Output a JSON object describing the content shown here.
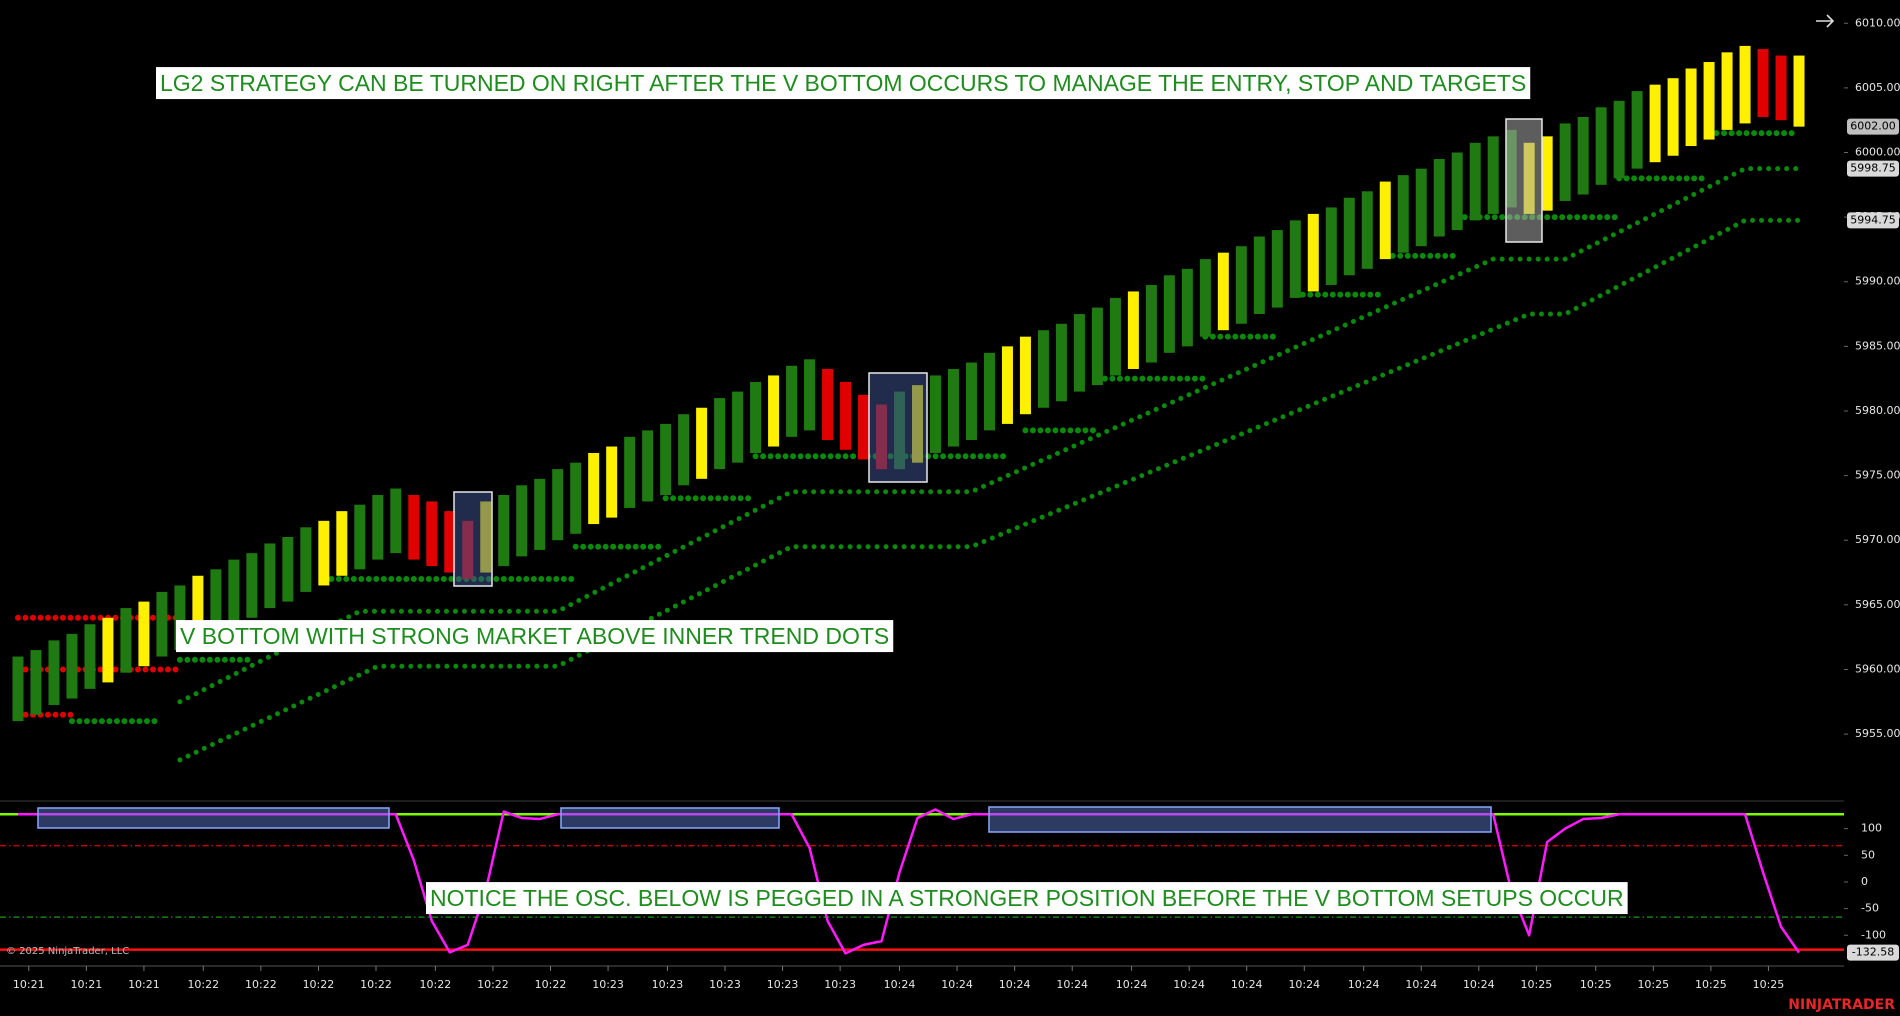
{
  "chart_data": [
    {
      "type": "range-bar",
      "high": [
        5961,
        5961.5,
        5962.25,
        5962.75,
        5963.5,
        5964,
        5964.75,
        5965.25,
        5966,
        5966.5,
        5967.25,
        5967.75,
        5968.5,
        5969,
        5969.75,
        5970.25,
        5971,
        5971.5,
        5972.25,
        5972.75,
        5973.5,
        5974,
        5973.5,
        5973,
        5972.25,
        5971.5,
        5973,
        5973.5,
        5974.25,
        5974.75,
        5975.5,
        5976,
        5976.75,
        5977.25,
        5978,
        5978.5,
        5979,
        5979.75,
        5980.25,
        5981,
        5981.5,
        5982.25,
        5982.75,
        5983.5,
        5984,
        5983.25,
        5982.25,
        5981.25,
        5980.5,
        5981.5,
        5982,
        5982.75,
        5983.25,
        5983.75,
        5984.5,
        5985,
        5985.75,
        5986.25,
        5986.75,
        5987.5,
        5988,
        5988.75,
        5989.25,
        5989.75,
        5990.5,
        5991,
        5991.75,
        5992.25,
        5992.75,
        5993.5,
        5994,
        5994.75,
        5995.25,
        5995.75,
        5996.5,
        5997,
        5997.75,
        5998.25,
        5998.75,
        5999.5,
        6000,
        6000.75,
        6001.25,
        6001.75,
        6000.75,
        6001.25,
        6002.25,
        6002.75,
        6003.5,
        6004,
        6004.75,
        6005.25,
        6005.75,
        6006.5,
        6007,
        6007.75,
        6008.25,
        6008,
        6007.5,
        6007.5
      ],
      "low": [
        5956,
        5956.5,
        5957.25,
        5957.75,
        5958.5,
        5959,
        5959.75,
        5960.25,
        5961,
        5961.5,
        5962.25,
        5962.75,
        5963.5,
        5964,
        5964.75,
        5965.25,
        5966,
        5966.5,
        5967.25,
        5967.75,
        5968.5,
        5969,
        5968.5,
        5968,
        5967.5,
        5967,
        5967.5,
        5968,
        5968.75,
        5969.25,
        5970,
        5970.5,
        5971.25,
        5971.75,
        5972.5,
        5973,
        5973.5,
        5974.25,
        5974.75,
        5975.5,
        5976,
        5976.75,
        5977.25,
        5978,
        5978.5,
        5977.75,
        5977,
        5976.25,
        5975.5,
        5975.5,
        5976,
        5976.75,
        5977.25,
        5977.75,
        5978.5,
        5979,
        5979.75,
        5980.25,
        5980.75,
        5981.5,
        5982,
        5982.75,
        5983.25,
        5983.75,
        5984.5,
        5985,
        5985.75,
        5986.25,
        5986.75,
        5987.5,
        5988,
        5988.75,
        5989.25,
        5989.75,
        5990.5,
        5991,
        5991.75,
        5992.25,
        5992.75,
        5993.5,
        5994,
        5994.75,
        5995.25,
        5995.75,
        5995.25,
        5995.5,
        5996.25,
        5996.75,
        5997.5,
        5998,
        5998.75,
        5999.25,
        5999.75,
        6000.5,
        6001,
        6001.75,
        6002.25,
        6002.75,
        6002.5,
        6002
      ],
      "colors": [
        "#1f7a12",
        "#1f7a12",
        "#1f7a12",
        "#1f7a12",
        "#1f7a12",
        "#ffef00",
        "#1f7a12",
        "#ffef00",
        "#1f7a12",
        "#1f7a12",
        "#ffef00",
        "#1f7a12",
        "#1f7a12",
        "#1f7a12",
        "#1f7a12",
        "#1f7a12",
        "#1f7a12",
        "#ffef00",
        "#ffef00",
        "#1f7a12",
        "#1f7a12",
        "#1f7a12",
        "#e00000",
        "#e00000",
        "#e00000",
        "#e00000",
        "#ffef00",
        "#1f7a12",
        "#1f7a12",
        "#1f7a12",
        "#1f7a12",
        "#1f7a12",
        "#ffef00",
        "#ffef00",
        "#1f7a12",
        "#1f7a12",
        "#1f7a12",
        "#1f7a12",
        "#ffef00",
        "#1f7a12",
        "#1f7a12",
        "#1f7a12",
        "#ffef00",
        "#1f7a12",
        "#1f7a12",
        "#e00000",
        "#e00000",
        "#e00000",
        "#e00000",
        "#1f7a12",
        "#ffef00",
        "#1f7a12",
        "#1f7a12",
        "#1f7a12",
        "#1f7a12",
        "#ffef00",
        "#ffef00",
        "#1f7a12",
        "#1f7a12",
        "#1f7a12",
        "#1f7a12",
        "#1f7a12",
        "#ffef00",
        "#1f7a12",
        "#1f7a12",
        "#1f7a12",
        "#1f7a12",
        "#ffef00",
        "#1f7a12",
        "#1f7a12",
        "#1f7a12",
        "#1f7a12",
        "#ffef00",
        "#1f7a12",
        "#1f7a12",
        "#1f7a12",
        "#ffef00",
        "#1f7a12",
        "#1f7a12",
        "#1f7a12",
        "#1f7a12",
        "#1f7a12",
        "#1f7a12",
        "#1f7a12",
        "#ffef00",
        "#ffef00",
        "#1f7a12",
        "#1f7a12",
        "#1f7a12",
        "#1f7a12",
        "#1f7a12",
        "#ffef00",
        "#ffef00",
        "#ffef00",
        "#ffef00",
        "#ffef00",
        "#ffef00",
        "#e00000",
        "#e00000",
        "#ffef00"
      ],
      "xlim": [
        -1,
        101.5
      ],
      "ylim": [
        5949.9,
        6011.8
      ],
      "yticks": [
        {
          "value": 6010,
          "label": "6010.00"
        },
        {
          "value": 6005,
          "label": "6005.00"
        },
        {
          "value": 6000,
          "label": "6000.00"
        },
        {
          "value": 5995,
          "label": "5995.00"
        },
        {
          "value": 5990,
          "label": "5990.00"
        },
        {
          "value": 5985,
          "label": "5985.00"
        },
        {
          "value": 5980,
          "label": "5980.00"
        },
        {
          "value": 5975,
          "label": "5975.00"
        },
        {
          "value": 5970,
          "label": "5970.00"
        },
        {
          "value": 5965,
          "label": "5965.00"
        },
        {
          "value": 5960,
          "label": "5960.00"
        },
        {
          "value": 5955,
          "label": "5955.00"
        }
      ],
      "price_markers": [
        {
          "value": 6002,
          "label": "6002.00"
        },
        {
          "value": 5998.75,
          "label": "5998.75"
        },
        {
          "value": 5994.75,
          "label": "5994.75"
        }
      ],
      "trend_dots": [
        {
          "color": "#e00000",
          "level": 5964,
          "from": 0,
          "to": 9
        },
        {
          "color": "#e00000",
          "level": 5960,
          "from": 0,
          "to": 9
        },
        {
          "color": "#e00000",
          "level": 5956.5,
          "from": 0,
          "to": 3
        },
        {
          "color": "#0a8a0a",
          "level": 5956,
          "from": 3,
          "to": 8
        },
        {
          "color": "#0a8a0a",
          "level": 5960.75,
          "from": 9,
          "to": 13
        },
        {
          "color": "#0a8a0a",
          "level": 5967,
          "from": 17,
          "to": 31
        },
        {
          "color": "#0a8a0a",
          "level": 5969.5,
          "from": 31,
          "to": 36
        },
        {
          "color": "#0a8a0a",
          "level": 5973.25,
          "from": 36,
          "to": 41
        },
        {
          "color": "#0a8a0a",
          "level": 5976.5,
          "from": 41,
          "to": 55
        },
        {
          "color": "#0a8a0a",
          "level": 5978.5,
          "from": 56,
          "to": 60
        },
        {
          "color": "#0a8a0a",
          "level": 5982.5,
          "from": 60,
          "to": 66
        },
        {
          "color": "#0a8a0a",
          "level": 5985.75,
          "from": 66,
          "to": 70
        },
        {
          "color": "#0a8a0a",
          "level": 5989,
          "from": 71,
          "to": 76
        },
        {
          "color": "#0a8a0a",
          "level": 5992,
          "from": 76,
          "to": 80
        },
        {
          "color": "#0a8a0a",
          "level": 5995,
          "from": 80,
          "to": 89
        },
        {
          "color": "#0a8a0a",
          "level": 5998,
          "from": 89,
          "to": 94
        },
        {
          "color": "#0a8a0a",
          "level": 6001.5,
          "from": 94,
          "to": 99
        }
      ],
      "trend_lines": [
        {
          "color": "#0a8a0a",
          "x": [
            9,
            19,
            30,
            43,
            53,
            82,
            86,
            96,
            99
          ],
          "values": [
            5957.5,
            5964.5,
            5964.5,
            5973.75,
            5973.75,
            5991.75,
            5991.75,
            5998.75,
            5998.75
          ]
        },
        {
          "color": "#0a8a0a",
          "x": [
            9,
            20,
            30,
            43,
            53,
            84,
            86,
            96,
            99
          ],
          "values": [
            5953,
            5960.25,
            5960.25,
            5969.5,
            5969.5,
            5987.5,
            5987.5,
            5994.75,
            5994.75
          ]
        }
      ],
      "annotations": [
        "LG2 STRATEGY CAN BE TURNED ON RIGHT AFTER THE V BOTTOM OCCURS TO MANAGE THE ENTRY, STOP AND TARGETS",
        "V BOTTOM WITH STRONG MARKET ABOVE INNER TREND DOTS"
      ]
    },
    {
      "type": "line",
      "series": [
        {
          "color": "#ff1aff",
          "values": [
            127,
            127,
            127,
            127,
            127,
            127,
            127,
            127,
            127,
            127,
            127,
            127,
            127,
            127,
            127,
            127,
            127,
            127,
            127,
            127,
            127,
            127,
            41,
            -73,
            -132,
            -118,
            -16,
            132,
            120,
            118,
            127,
            127,
            127,
            127,
            127,
            127,
            127,
            127,
            127,
            127,
            127,
            127,
            127,
            127,
            64,
            -73,
            -134,
            -118,
            -111,
            18,
            120,
            136,
            118,
            127,
            127,
            127,
            127,
            127,
            127,
            127,
            127,
            127,
            127,
            127,
            127,
            127,
            127,
            127,
            127,
            127,
            127,
            127,
            127,
            127,
            127,
            127,
            127,
            127,
            127,
            127,
            127,
            127,
            127,
            -16,
            -100,
            75,
            100,
            118,
            120,
            127,
            127,
            127,
            127,
            127,
            127,
            127,
            127,
            18,
            -84,
            -132.58
          ]
        }
      ],
      "xlim": [
        -1,
        101.5
      ],
      "ylim": [
        -152,
        150
      ],
      "yticks": [
        100,
        50,
        0,
        -50,
        -100
      ],
      "levels": [
        {
          "value": 127,
          "color": "#7cfc00",
          "style": "solid"
        },
        {
          "value": 68,
          "color": "#e00000",
          "style": "dashdot"
        },
        {
          "value": -66,
          "color": "#1a9a1a",
          "style": "dashdot"
        },
        {
          "value": -127,
          "color": "#ff1010",
          "style": "solid"
        }
      ],
      "last_label": {
        "value": -132.58,
        "label": "-132.58"
      },
      "xticks": [
        {
          "value": 0.6,
          "label": "10:21"
        },
        {
          "value": 3.8,
          "label": "10:21"
        },
        {
          "value": 7.0,
          "label": "10:21"
        },
        {
          "value": 10.3,
          "label": "10:22"
        },
        {
          "value": 13.5,
          "label": "10:22"
        },
        {
          "value": 16.7,
          "label": "10:22"
        },
        {
          "value": 19.9,
          "label": "10:22"
        },
        {
          "value": 23.2,
          "label": "10:22"
        },
        {
          "value": 26.4,
          "label": "10:22"
        },
        {
          "value": 29.6,
          "label": "10:22"
        },
        {
          "value": 32.8,
          "label": "10:23"
        },
        {
          "value": 36.1,
          "label": "10:23"
        },
        {
          "value": 39.3,
          "label": "10:23"
        },
        {
          "value": 42.5,
          "label": "10:23"
        },
        {
          "value": 45.7,
          "label": "10:23"
        },
        {
          "value": 49.0,
          "label": "10:24"
        },
        {
          "value": 52.2,
          "label": "10:24"
        },
        {
          "value": 55.4,
          "label": "10:24"
        },
        {
          "value": 58.6,
          "label": "10:24"
        },
        {
          "value": 61.9,
          "label": "10:24"
        },
        {
          "value": 65.1,
          "label": "10:24"
        },
        {
          "value": 68.3,
          "label": "10:24"
        },
        {
          "value": 71.5,
          "label": "10:24"
        },
        {
          "value": 74.8,
          "label": "10:24"
        },
        {
          "value": 78.0,
          "label": "10:24"
        },
        {
          "value": 81.2,
          "label": "10:24"
        },
        {
          "value": 84.4,
          "label": "10:25"
        },
        {
          "value": 87.7,
          "label": "10:25"
        },
        {
          "value": 90.9,
          "label": "10:25"
        },
        {
          "value": 94.1,
          "label": "10:25"
        },
        {
          "value": 97.3,
          "label": "10:25"
        }
      ],
      "annotations": [
        "NOTICE THE OSC. BELOW IS PEGGED IN A STRONGER POSITION BEFORE THE V BOTTOM SETUPS OCCUR"
      ]
    }
  ],
  "copyright": "© 2025 NinjaTrader, LLC",
  "brand": "NINJATRADER"
}
